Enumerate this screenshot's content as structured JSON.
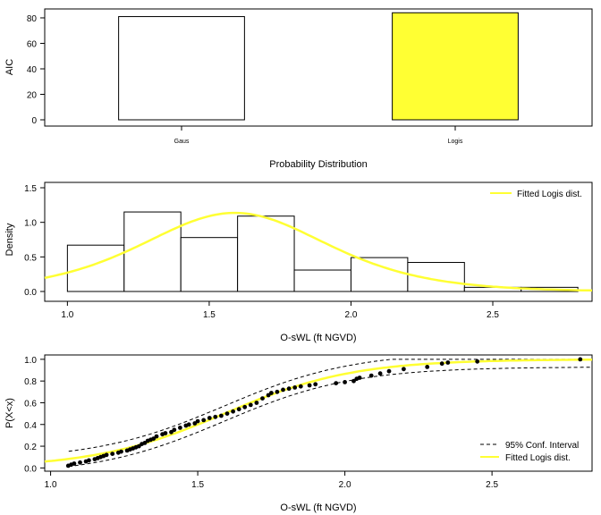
{
  "chart_data": [
    {
      "type": "bar",
      "title": "",
      "xlabel": "Probability Distribution",
      "ylabel": "AIC",
      "categories": [
        "Gaus",
        "Logis"
      ],
      "values": [
        81,
        84
      ],
      "bar_colors": [
        "#ffffff",
        "#ffff33"
      ],
      "ylim": [
        0,
        87
      ],
      "yticks": [
        0,
        20,
        40,
        60,
        80
      ]
    },
    {
      "type": "histogram",
      "title": "",
      "xlabel": "O-sWL (ft NGVD)",
      "ylabel": "Density",
      "bins": [
        {
          "x0": 1.0,
          "x1": 1.2,
          "density": 0.67
        },
        {
          "x0": 1.2,
          "x1": 1.4,
          "density": 1.15
        },
        {
          "x0": 1.4,
          "x1": 1.6,
          "density": 0.78
        },
        {
          "x0": 1.6,
          "x1": 1.8,
          "density": 1.09
        },
        {
          "x0": 1.8,
          "x1": 2.0,
          "density": 0.31
        },
        {
          "x0": 2.0,
          "x1": 2.2,
          "density": 0.49
        },
        {
          "x0": 2.2,
          "x1": 2.4,
          "density": 0.42
        },
        {
          "x0": 2.4,
          "x1": 2.6,
          "density": 0.06
        },
        {
          "x0": 2.6,
          "x1": 2.8,
          "density": 0.06
        }
      ],
      "curve": {
        "name": "Fitted Logis dist.",
        "color": "#ffff33",
        "location": 1.59,
        "scale": 0.22
      },
      "xlim": [
        0.92,
        2.85
      ],
      "ylim": [
        0,
        1.5
      ],
      "xticks": [
        1.0,
        1.5,
        2.0,
        2.5
      ],
      "yticks": [
        0.0,
        0.5,
        1.0,
        1.5
      ],
      "legend": {
        "position": "top-right",
        "entries": [
          "Fitted Logis dist."
        ]
      }
    },
    {
      "type": "scatter",
      "title": "",
      "xlabel": "O-sWL (ft NGVD)",
      "ylabel": "P(X<x)",
      "points": [
        [
          1.06,
          0.02
        ],
        [
          1.07,
          0.03
        ],
        [
          1.08,
          0.04
        ],
        [
          1.1,
          0.05
        ],
        [
          1.12,
          0.06
        ],
        [
          1.13,
          0.07
        ],
        [
          1.15,
          0.08
        ],
        [
          1.16,
          0.09
        ],
        [
          1.17,
          0.1
        ],
        [
          1.18,
          0.11
        ],
        [
          1.19,
          0.12
        ],
        [
          1.21,
          0.13
        ],
        [
          1.23,
          0.14
        ],
        [
          1.24,
          0.15
        ],
        [
          1.26,
          0.16
        ],
        [
          1.27,
          0.17
        ],
        [
          1.28,
          0.18
        ],
        [
          1.29,
          0.19
        ],
        [
          1.3,
          0.2
        ],
        [
          1.31,
          0.22
        ],
        [
          1.32,
          0.23
        ],
        [
          1.33,
          0.25
        ],
        [
          1.34,
          0.26
        ],
        [
          1.35,
          0.27
        ],
        [
          1.36,
          0.29
        ],
        [
          1.38,
          0.31
        ],
        [
          1.39,
          0.32
        ],
        [
          1.41,
          0.33
        ],
        [
          1.42,
          0.35
        ],
        [
          1.44,
          0.37
        ],
        [
          1.46,
          0.39
        ],
        [
          1.47,
          0.4
        ],
        [
          1.49,
          0.41
        ],
        [
          1.5,
          0.43
        ],
        [
          1.52,
          0.44
        ],
        [
          1.54,
          0.46
        ],
        [
          1.56,
          0.47
        ],
        [
          1.58,
          0.48
        ],
        [
          1.6,
          0.5
        ],
        [
          1.62,
          0.52
        ],
        [
          1.64,
          0.54
        ],
        [
          1.66,
          0.56
        ],
        [
          1.68,
          0.58
        ],
        [
          1.7,
          0.6
        ],
        [
          1.72,
          0.64
        ],
        [
          1.74,
          0.67
        ],
        [
          1.75,
          0.69
        ],
        [
          1.77,
          0.7
        ],
        [
          1.79,
          0.72
        ],
        [
          1.81,
          0.73
        ],
        [
          1.83,
          0.74
        ],
        [
          1.85,
          0.75
        ],
        [
          1.88,
          0.76
        ],
        [
          1.9,
          0.77
        ],
        [
          1.97,
          0.78
        ],
        [
          2.0,
          0.79
        ],
        [
          2.03,
          0.8
        ],
        [
          2.04,
          0.82
        ],
        [
          2.05,
          0.83
        ],
        [
          2.09,
          0.85
        ],
        [
          2.12,
          0.87
        ],
        [
          2.15,
          0.89
        ],
        [
          2.2,
          0.91
        ],
        [
          2.28,
          0.93
        ],
        [
          2.33,
          0.96
        ],
        [
          2.35,
          0.97
        ],
        [
          2.45,
          0.98
        ],
        [
          2.8,
          1.0
        ]
      ],
      "curve": {
        "name": "Fitted Logis dist.",
        "color": "#ffff33",
        "location": 1.59,
        "scale": 0.22
      },
      "conf_band": {
        "name": "95% Conf. Interval",
        "offset": 0.07
      },
      "xlim": [
        0.98,
        2.84
      ],
      "ylim": [
        -0.03,
        1.04
      ],
      "xticks": [
        1.0,
        1.5,
        2.0,
        2.5
      ],
      "yticks": [
        0.0,
        0.2,
        0.4,
        0.6,
        0.8,
        1.0
      ],
      "legend": {
        "position": "bottom-right",
        "entries": [
          "95% Conf. Interval",
          "Fitted Logis dist."
        ]
      }
    }
  ]
}
